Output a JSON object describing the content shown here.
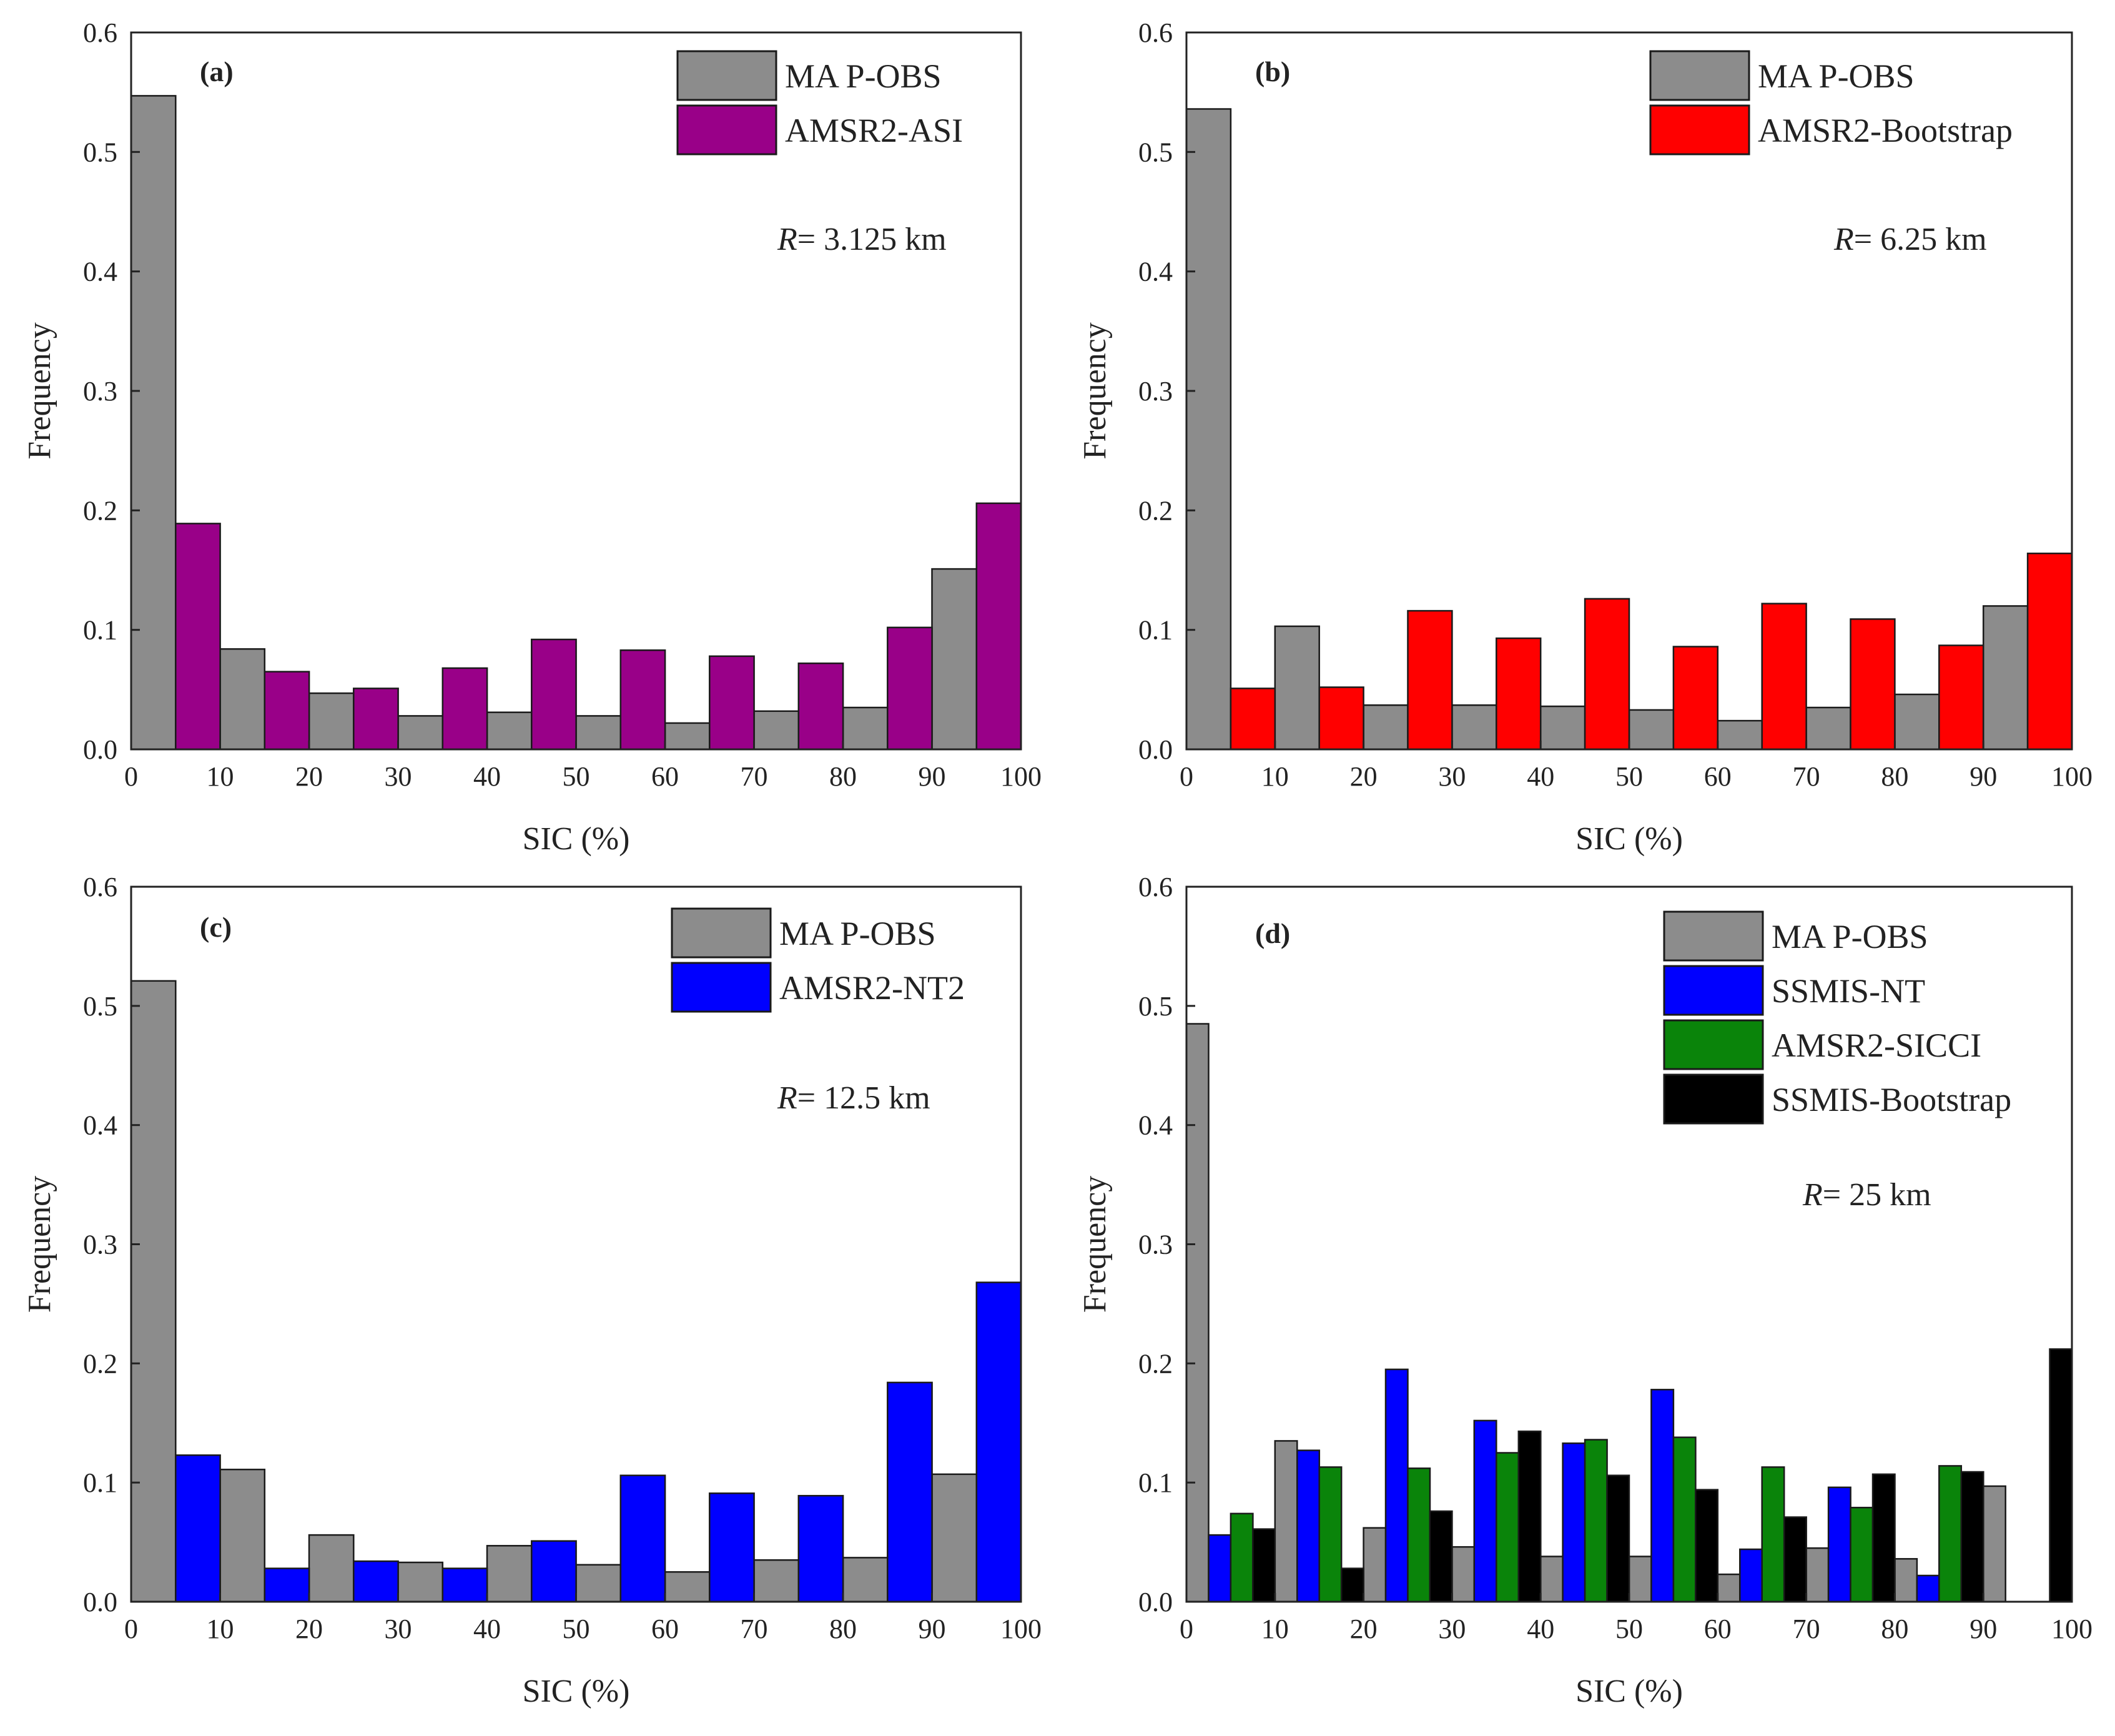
{
  "colors": {
    "MA P-OBS": "#8c8c8c",
    "AMSR2-ASI": "#990088",
    "AMSR2-Bootstrap": "#ff0000",
    "AMSR2-NT2": "#0000ff",
    "SSMIS-NT": "#0000ff",
    "AMSR2-SICCI": "#0a840a",
    "SSMIS-Bootstrap": "#000000"
  },
  "chart_data": [
    {
      "type": "bar",
      "panel": "(a)",
      "resolution": {
        "var": "R",
        "text": "= 3.125 km"
      },
      "xlabel": "SIC (%)",
      "ylabel": "Frequency",
      "xlim": [
        0,
        100
      ],
      "ylim": [
        0,
        0.6
      ],
      "xticks": [
        "0",
        "10",
        "20",
        "30",
        "40",
        "50",
        "60",
        "70",
        "80",
        "90",
        "100"
      ],
      "yticks": [
        "0.0",
        "0.1",
        "0.2",
        "0.3",
        "0.4",
        "0.5",
        "0.6"
      ],
      "categories": [
        "0-10",
        "10-20",
        "20-30",
        "30-40",
        "40-50",
        "50-60",
        "60-70",
        "70-80",
        "80-90",
        "90-100"
      ],
      "series": [
        {
          "name": "MA P-OBS",
          "values": [
            0.547,
            0.084,
            0.047,
            0.028,
            0.031,
            0.028,
            0.022,
            0.032,
            0.035,
            0.151
          ]
        },
        {
          "name": "AMSR2-ASI",
          "values": [
            0.189,
            0.065,
            0.051,
            0.068,
            0.092,
            0.083,
            0.078,
            0.072,
            0.102,
            0.206
          ]
        }
      ]
    },
    {
      "type": "bar",
      "panel": "(b)",
      "resolution": {
        "var": "R",
        "text": "= 6.25 km"
      },
      "xlabel": "SIC (%)",
      "ylabel": "Frequency",
      "xlim": [
        0,
        100
      ],
      "ylim": [
        0,
        0.6
      ],
      "xticks": [
        "0",
        "10",
        "20",
        "30",
        "40",
        "50",
        "60",
        "70",
        "80",
        "90",
        "100"
      ],
      "yticks": [
        "0.0",
        "0.1",
        "0.2",
        "0.3",
        "0.4",
        "0.5",
        "0.6"
      ],
      "categories": [
        "0-10",
        "10-20",
        "20-30",
        "30-40",
        "40-50",
        "50-60",
        "60-70",
        "70-80",
        "80-90",
        "90-100"
      ],
      "series": [
        {
          "name": "MA P-OBS",
          "values": [
            0.536,
            0.103,
            0.037,
            0.037,
            0.036,
            0.033,
            0.024,
            0.035,
            0.046,
            0.12
          ]
        },
        {
          "name": "AMSR2-Bootstrap",
          "values": [
            0.051,
            0.052,
            0.116,
            0.093,
            0.126,
            0.086,
            0.122,
            0.109,
            0.087,
            0.164
          ]
        }
      ]
    },
    {
      "type": "bar",
      "panel": "(c)",
      "resolution": {
        "var": "R",
        "text": "= 12.5 km"
      },
      "xlabel": "SIC (%)",
      "ylabel": "Frequency",
      "xlim": [
        0,
        100
      ],
      "ylim": [
        0,
        0.6
      ],
      "xticks": [
        "0",
        "10",
        "20",
        "30",
        "40",
        "50",
        "60",
        "70",
        "80",
        "90",
        "100"
      ],
      "yticks": [
        "0.0",
        "0.1",
        "0.2",
        "0.3",
        "0.4",
        "0.5",
        "0.6"
      ],
      "categories": [
        "0-10",
        "10-20",
        "20-30",
        "30-40",
        "40-50",
        "50-60",
        "60-70",
        "70-80",
        "80-90",
        "90-100"
      ],
      "series": [
        {
          "name": "MA P-OBS",
          "values": [
            0.521,
            0.111,
            0.056,
            0.033,
            0.047,
            0.031,
            0.025,
            0.035,
            0.037,
            0.107
          ]
        },
        {
          "name": "AMSR2-NT2",
          "values": [
            0.123,
            0.028,
            0.034,
            0.028,
            0.051,
            0.106,
            0.091,
            0.089,
            0.184,
            0.268
          ]
        }
      ]
    },
    {
      "type": "bar",
      "panel": "(d)",
      "resolution": {
        "var": "R",
        "text": "= 25 km"
      },
      "xlabel": "SIC (%)",
      "ylabel": "Frequency",
      "xlim": [
        0,
        100
      ],
      "ylim": [
        0,
        0.6
      ],
      "xticks": [
        "0",
        "10",
        "20",
        "30",
        "40",
        "50",
        "60",
        "70",
        "80",
        "90",
        "100"
      ],
      "yticks": [
        "0.0",
        "0.1",
        "0.2",
        "0.3",
        "0.4",
        "0.5",
        "0.6"
      ],
      "categories": [
        "0-10",
        "10-20",
        "20-30",
        "30-40",
        "40-50",
        "50-60",
        "60-70",
        "70-80",
        "80-90",
        "90-100"
      ],
      "series": [
        {
          "name": "MA P-OBS",
          "values": [
            0.485,
            0.135,
            0.062,
            0.046,
            0.038,
            0.038,
            0.023,
            0.045,
            0.036,
            0.097
          ]
        },
        {
          "name": "SSMIS-NT",
          "values": [
            0.056,
            0.127,
            0.195,
            0.152,
            0.133,
            0.178,
            0.044,
            0.096,
            0.022,
            0.0
          ]
        },
        {
          "name": "AMSR2-SICCI",
          "values": [
            0.074,
            0.113,
            0.112,
            0.125,
            0.136,
            0.138,
            0.113,
            0.079,
            0.114,
            0.0
          ]
        },
        {
          "name": "SSMIS-Bootstrap",
          "values": [
            0.061,
            0.028,
            0.076,
            0.143,
            0.106,
            0.094,
            0.071,
            0.107,
            0.109,
            0.212
          ]
        }
      ]
    }
  ]
}
